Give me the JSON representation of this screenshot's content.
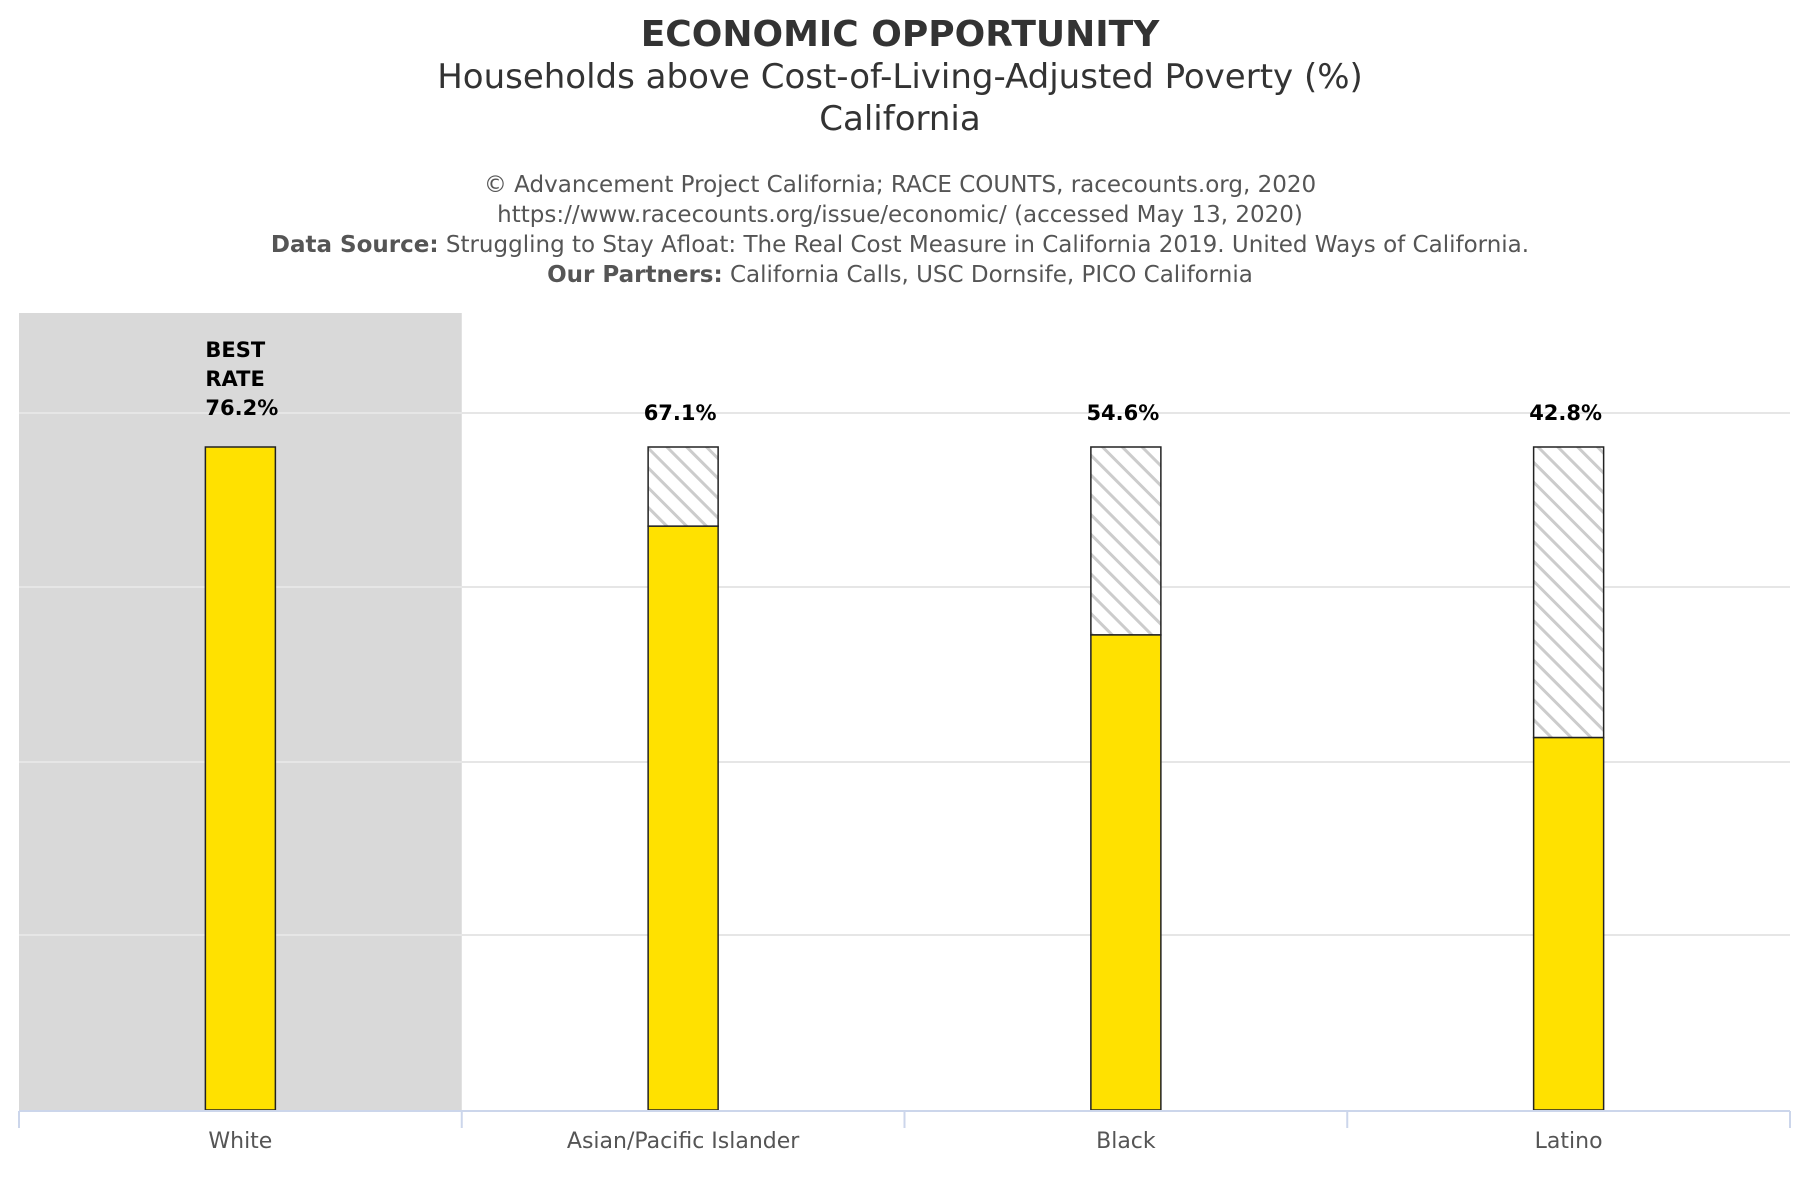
{
  "header": {
    "title": "ECONOMIC OPPORTUNITY",
    "subtitle": "Households above Cost-of-Living-Adjusted Poverty (%)",
    "region": "California",
    "credit_line": "© Advancement Project California; RACE COUNTS, racecounts.org, 2020",
    "url_line": "https://www.racecounts.org/issue/economic/ (accessed May 13, 2020)",
    "data_source_label": "Data Source:",
    "data_source_text": "Struggling to Stay Afloat: The Real Cost Measure in California 2019. United Ways of California.",
    "partners_label": "Our Partners:",
    "partners_text": "California Calls, USC Dornsife, PICO California"
  },
  "chart_data": {
    "type": "bar",
    "categories": [
      "White",
      "Asian/Pacific Islander",
      "Black",
      "Latino"
    ],
    "values": [
      76.2,
      67.1,
      54.6,
      42.8
    ],
    "best_rate": 76.2,
    "data_labels": [
      "76.2%",
      "67.1%",
      "54.6%",
      "42.8%"
    ],
    "best_label_lines": [
      "BEST",
      "RATE"
    ],
    "highlight_category": "White",
    "grid": true,
    "colors": {
      "bar": "#FFE100",
      "bar_stroke": "#222222",
      "gap_hatch": "#cccccc",
      "highlight_band": "#d9d9d9",
      "grid": "#e6e6e6",
      "axis": "#ccd6eb"
    }
  }
}
